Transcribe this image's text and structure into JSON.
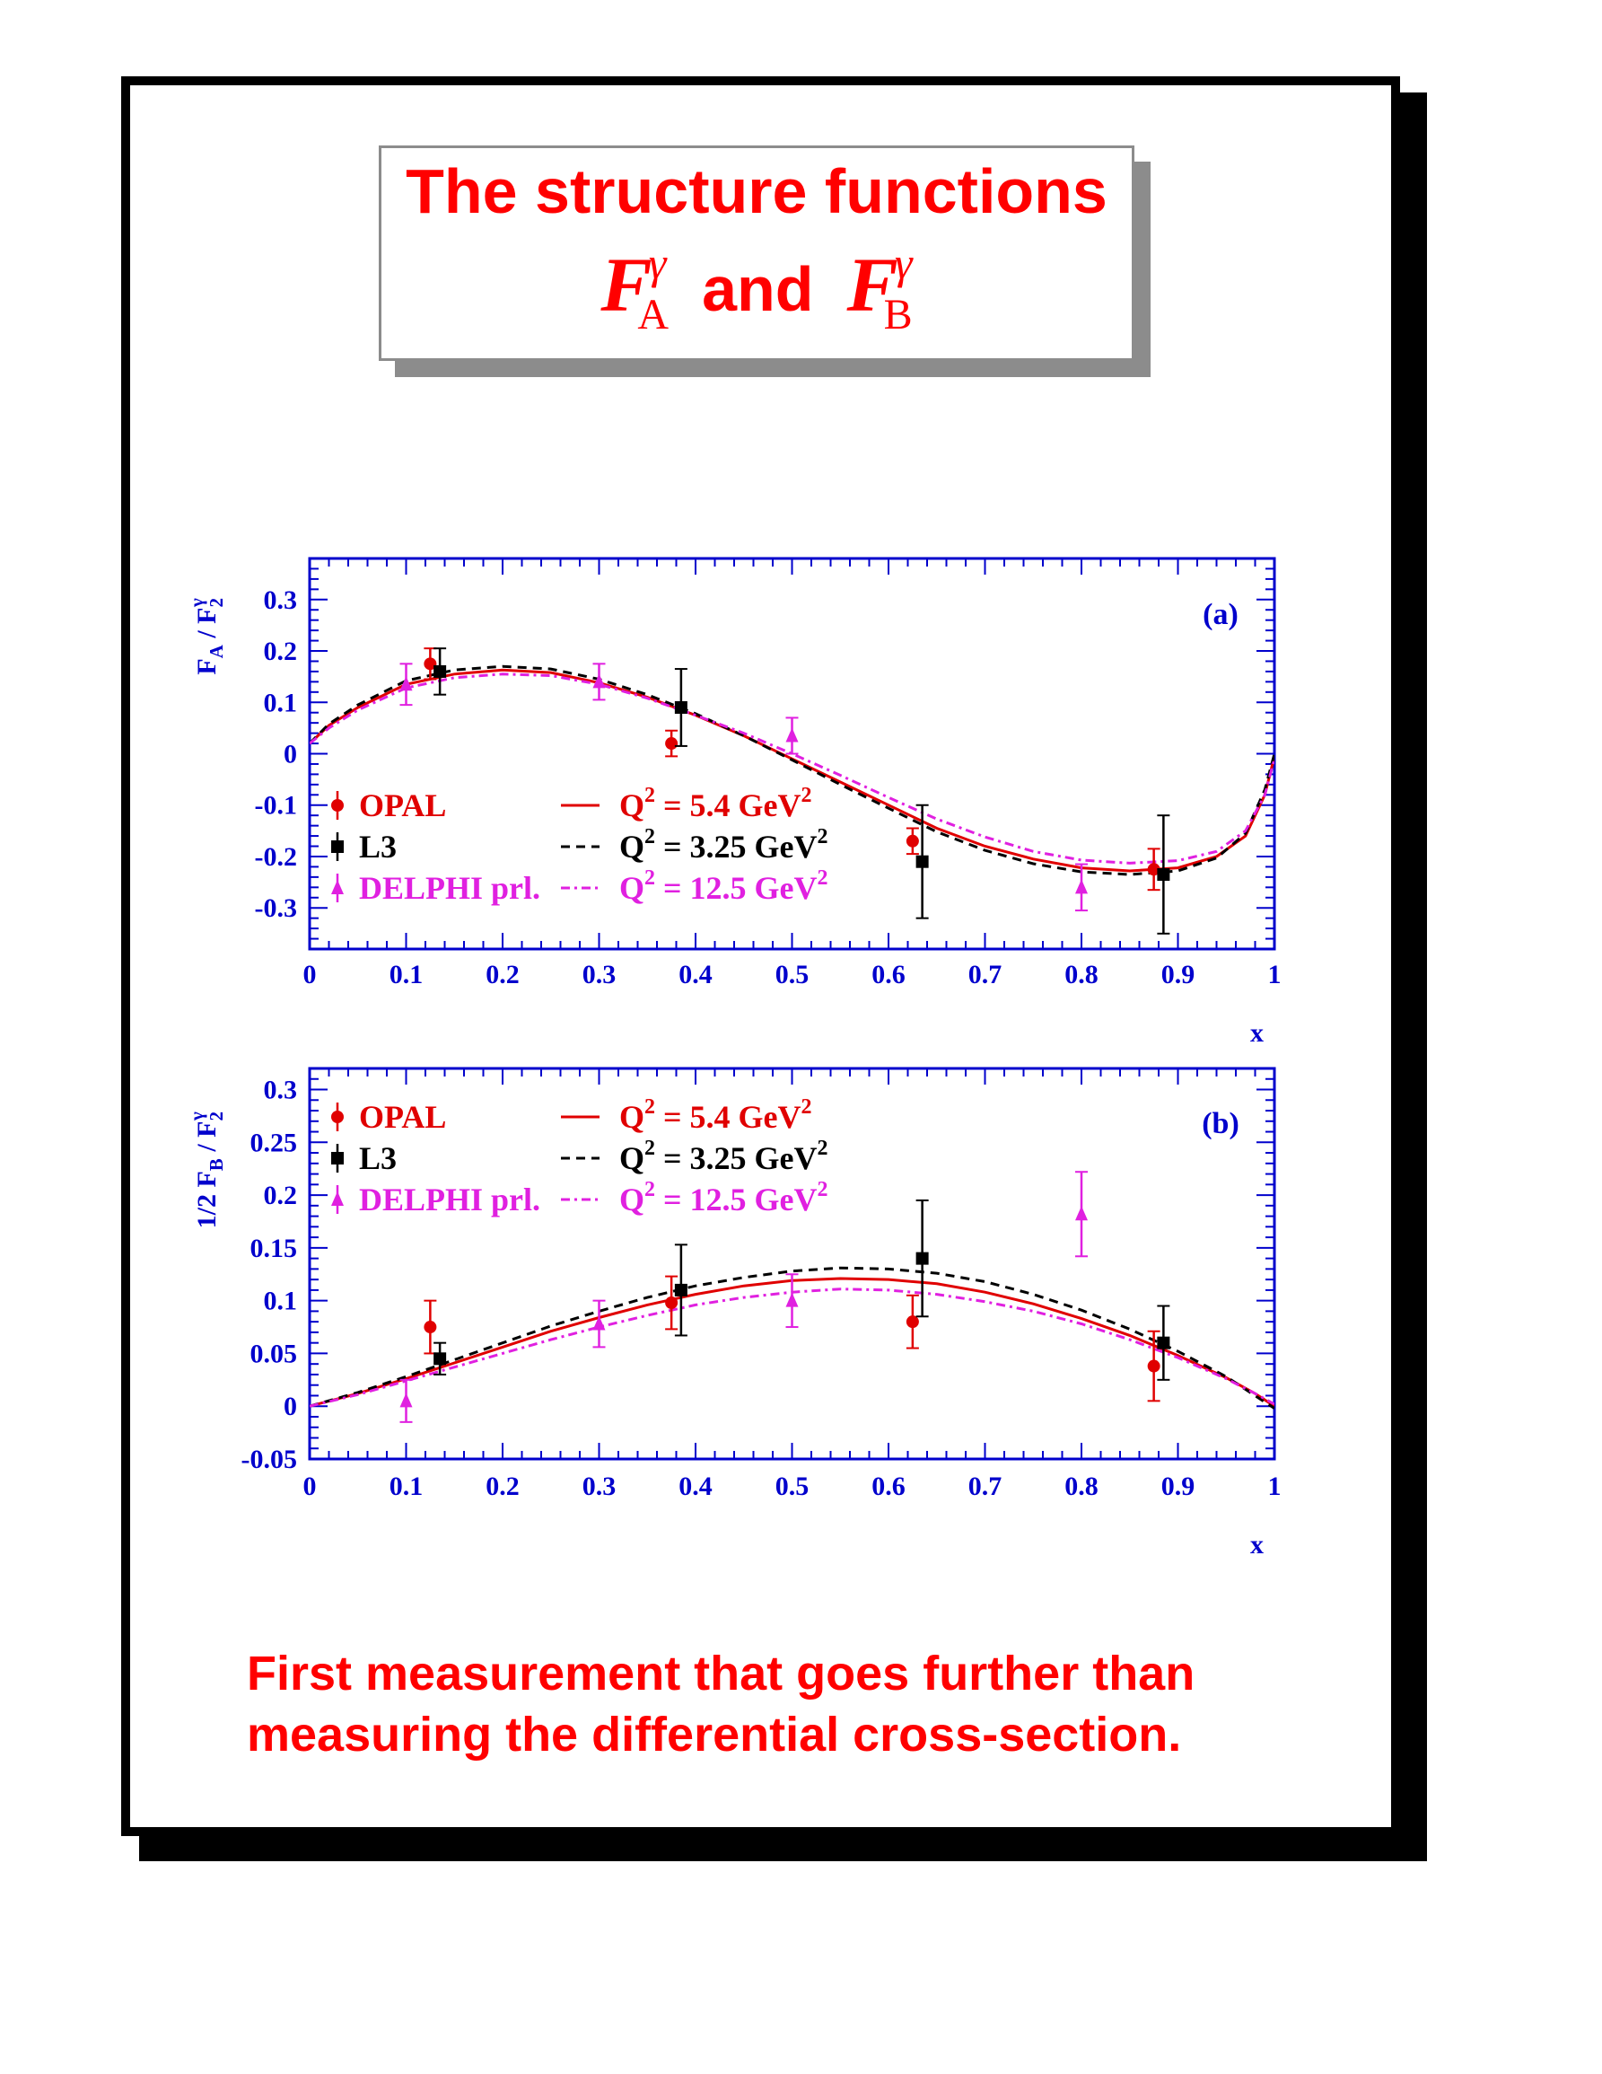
{
  "title": {
    "line1": "The structure functions",
    "symbol": "F",
    "superscript": "γ",
    "sub_a": "A",
    "and": "and",
    "sub_b": "B"
  },
  "conclusion": {
    "line1": "First measurement that goes further than",
    "line2": "measuring the differential cross-section."
  },
  "colors": {
    "red": "#ff0000",
    "axis": "#0000cc",
    "opal": "#e00000",
    "l3": "#000000",
    "delphi": "#e020e0"
  },
  "chart_data": [
    {
      "type": "scatter",
      "panel_label": "(a)",
      "ylabel_parts": {
        "main": "F",
        "main_sub": "A",
        "sep": " / F",
        "den_sub": "2",
        "den_sup": "γ"
      },
      "xlabel": "x",
      "xlim": [
        0,
        1
      ],
      "ylim": [
        -0.38,
        0.38
      ],
      "xticks": [
        0,
        0.1,
        0.2,
        0.3,
        0.4,
        0.5,
        0.6,
        0.7,
        0.8,
        0.9,
        1
      ],
      "xtick_labels": [
        "0",
        "0.1",
        "0.2",
        "0.3",
        "0.4",
        "0.5",
        "0.6",
        "0.7",
        "0.8",
        "0.9",
        "1"
      ],
      "yticks": [
        -0.3,
        -0.2,
        -0.1,
        0,
        0.1,
        0.2,
        0.3
      ],
      "ytick_labels": [
        "-0.3",
        "-0.2",
        "-0.1",
        "0",
        "0.1",
        "0.2",
        "0.3"
      ],
      "legend_position": "bottom-left",
      "series": [
        {
          "name": "OPAL",
          "kind": "points",
          "marker": "circle",
          "color": "#e00000",
          "points": [
            {
              "x": 0.125,
              "y": 0.175,
              "err": 0.03
            },
            {
              "x": 0.375,
              "y": 0.02,
              "err": 0.025
            },
            {
              "x": 0.625,
              "y": -0.17,
              "err": 0.025
            },
            {
              "x": 0.875,
              "y": -0.225,
              "err": 0.04
            }
          ]
        },
        {
          "name": "L3",
          "kind": "points",
          "marker": "square",
          "color": "#000000",
          "points": [
            {
              "x": 0.135,
              "y": 0.16,
              "err": 0.045
            },
            {
              "x": 0.385,
              "y": 0.09,
              "err": 0.075
            },
            {
              "x": 0.635,
              "y": -0.21,
              "err": 0.11
            },
            {
              "x": 0.885,
              "y": -0.235,
              "err": 0.115
            }
          ]
        },
        {
          "name": "DELPHI prl.",
          "kind": "points",
          "marker": "triangle",
          "color": "#e020e0",
          "points": [
            {
              "x": 0.1,
              "y": 0.135,
              "err": 0.04
            },
            {
              "x": 0.3,
              "y": 0.14,
              "err": 0.035
            },
            {
              "x": 0.5,
              "y": 0.035,
              "err": 0.035
            },
            {
              "x": 0.8,
              "y": -0.26,
              "err": 0.045
            }
          ]
        },
        {
          "name": "Q² = 5.4 GeV²",
          "kind": "line",
          "dash": "solid",
          "color": "#e00000",
          "x": [
            0,
            0.02,
            0.05,
            0.1,
            0.15,
            0.2,
            0.25,
            0.3,
            0.35,
            0.4,
            0.45,
            0.5,
            0.55,
            0.6,
            0.65,
            0.7,
            0.75,
            0.8,
            0.85,
            0.9,
            0.94,
            0.97,
            0.99,
            1.0
          ],
          "y": [
            0.02,
            0.055,
            0.09,
            0.135,
            0.155,
            0.163,
            0.158,
            0.138,
            0.11,
            0.075,
            0.035,
            -0.01,
            -0.055,
            -0.1,
            -0.145,
            -0.18,
            -0.205,
            -0.222,
            -0.228,
            -0.222,
            -0.2,
            -0.16,
            -0.08,
            -0.005
          ]
        },
        {
          "name": "Q² = 3.25 GeV²",
          "kind": "line",
          "dash": "dashed",
          "color": "#000000",
          "x": [
            0,
            0.02,
            0.05,
            0.1,
            0.15,
            0.2,
            0.25,
            0.3,
            0.35,
            0.4,
            0.45,
            0.5,
            0.55,
            0.6,
            0.65,
            0.7,
            0.75,
            0.8,
            0.85,
            0.9,
            0.94,
            0.97,
            0.99,
            1.0
          ],
          "y": [
            0.02,
            0.058,
            0.095,
            0.142,
            0.163,
            0.17,
            0.165,
            0.145,
            0.115,
            0.078,
            0.035,
            -0.012,
            -0.06,
            -0.106,
            -0.152,
            -0.188,
            -0.214,
            -0.23,
            -0.235,
            -0.228,
            -0.203,
            -0.155,
            -0.07,
            0.0
          ]
        },
        {
          "name": "Q² = 12.5 GeV²",
          "kind": "line",
          "dash": "dashdot",
          "color": "#e020e0",
          "x": [
            0,
            0.02,
            0.05,
            0.1,
            0.15,
            0.2,
            0.25,
            0.3,
            0.35,
            0.4,
            0.45,
            0.5,
            0.55,
            0.6,
            0.65,
            0.7,
            0.75,
            0.8,
            0.85,
            0.9,
            0.94,
            0.97,
            0.99,
            1.0
          ],
          "y": [
            0.02,
            0.05,
            0.085,
            0.128,
            0.148,
            0.155,
            0.152,
            0.135,
            0.108,
            0.075,
            0.04,
            0.0,
            -0.042,
            -0.085,
            -0.127,
            -0.162,
            -0.19,
            -0.207,
            -0.213,
            -0.208,
            -0.19,
            -0.15,
            -0.08,
            -0.01
          ]
        }
      ]
    },
    {
      "type": "scatter",
      "panel_label": "(b)",
      "ylabel_parts": {
        "main": "1/2 F",
        "main_sub": "B",
        "sep": " / F",
        "den_sub": "2",
        "den_sup": "γ"
      },
      "xlabel": "x",
      "xlim": [
        0,
        1
      ],
      "ylim": [
        -0.05,
        0.32
      ],
      "xticks": [
        0,
        0.1,
        0.2,
        0.3,
        0.4,
        0.5,
        0.6,
        0.7,
        0.8,
        0.9,
        1
      ],
      "xtick_labels": [
        "0",
        "0.1",
        "0.2",
        "0.3",
        "0.4",
        "0.5",
        "0.6",
        "0.7",
        "0.8",
        "0.9",
        "1"
      ],
      "yticks": [
        -0.05,
        0,
        0.05,
        0.1,
        0.15,
        0.2,
        0.25,
        0.3
      ],
      "ytick_labels": [
        "-0.05",
        "0",
        "0.05",
        "0.1",
        "0.15",
        "0.2",
        "0.25",
        "0.3"
      ],
      "legend_position": "top-left",
      "series": [
        {
          "name": "OPAL",
          "kind": "points",
          "marker": "circle",
          "color": "#e00000",
          "points": [
            {
              "x": 0.125,
              "y": 0.075,
              "err": 0.025
            },
            {
              "x": 0.375,
              "y": 0.098,
              "err": 0.025
            },
            {
              "x": 0.625,
              "y": 0.08,
              "err": 0.025
            },
            {
              "x": 0.875,
              "y": 0.038,
              "err": 0.033
            }
          ]
        },
        {
          "name": "L3",
          "kind": "points",
          "marker": "square",
          "color": "#000000",
          "points": [
            {
              "x": 0.135,
              "y": 0.045,
              "err": 0.015
            },
            {
              "x": 0.385,
              "y": 0.11,
              "err": 0.043
            },
            {
              "x": 0.635,
              "y": 0.14,
              "err": 0.055
            },
            {
              "x": 0.885,
              "y": 0.06,
              "err": 0.035
            }
          ]
        },
        {
          "name": "DELPHI prl.",
          "kind": "points",
          "marker": "triangle",
          "color": "#e020e0",
          "points": [
            {
              "x": 0.1,
              "y": 0.005,
              "err": 0.02
            },
            {
              "x": 0.3,
              "y": 0.078,
              "err": 0.022
            },
            {
              "x": 0.5,
              "y": 0.1,
              "err": 0.025
            },
            {
              "x": 0.8,
              "y": 0.182,
              "err": 0.04
            }
          ]
        },
        {
          "name": "Q² = 5.4 GeV²",
          "kind": "line",
          "dash": "solid",
          "color": "#e00000",
          "x": [
            0,
            0.05,
            0.1,
            0.15,
            0.2,
            0.25,
            0.3,
            0.35,
            0.4,
            0.45,
            0.5,
            0.55,
            0.6,
            0.65,
            0.7,
            0.75,
            0.8,
            0.85,
            0.9,
            0.95,
            0.98,
            1.0
          ],
          "y": [
            0,
            0.012,
            0.026,
            0.041,
            0.056,
            0.071,
            0.084,
            0.096,
            0.106,
            0.114,
            0.119,
            0.121,
            0.12,
            0.116,
            0.108,
            0.097,
            0.083,
            0.067,
            0.048,
            0.027,
            0.012,
            0.0
          ]
        },
        {
          "name": "Q² = 3.25 GeV²",
          "kind": "line",
          "dash": "dashed",
          "color": "#000000",
          "x": [
            0,
            0.05,
            0.1,
            0.15,
            0.2,
            0.25,
            0.3,
            0.35,
            0.4,
            0.45,
            0.5,
            0.55,
            0.6,
            0.65,
            0.7,
            0.75,
            0.8,
            0.85,
            0.9,
            0.95,
            0.98,
            1.0
          ],
          "y": [
            0,
            0.013,
            0.028,
            0.044,
            0.06,
            0.076,
            0.09,
            0.103,
            0.114,
            0.122,
            0.128,
            0.131,
            0.13,
            0.126,
            0.118,
            0.106,
            0.091,
            0.073,
            0.052,
            0.028,
            0.01,
            -0.002
          ]
        },
        {
          "name": "Q² = 12.5 GeV²",
          "kind": "line",
          "dash": "dashdot",
          "color": "#e020e0",
          "x": [
            0,
            0.05,
            0.1,
            0.15,
            0.2,
            0.25,
            0.3,
            0.35,
            0.4,
            0.45,
            0.5,
            0.55,
            0.6,
            0.65,
            0.7,
            0.75,
            0.8,
            0.85,
            0.9,
            0.95,
            0.98,
            1.0
          ],
          "y": [
            0,
            0.011,
            0.024,
            0.037,
            0.05,
            0.063,
            0.075,
            0.086,
            0.096,
            0.103,
            0.108,
            0.111,
            0.11,
            0.106,
            0.099,
            0.09,
            0.078,
            0.063,
            0.046,
            0.026,
            0.012,
            0.002
          ]
        }
      ]
    }
  ]
}
